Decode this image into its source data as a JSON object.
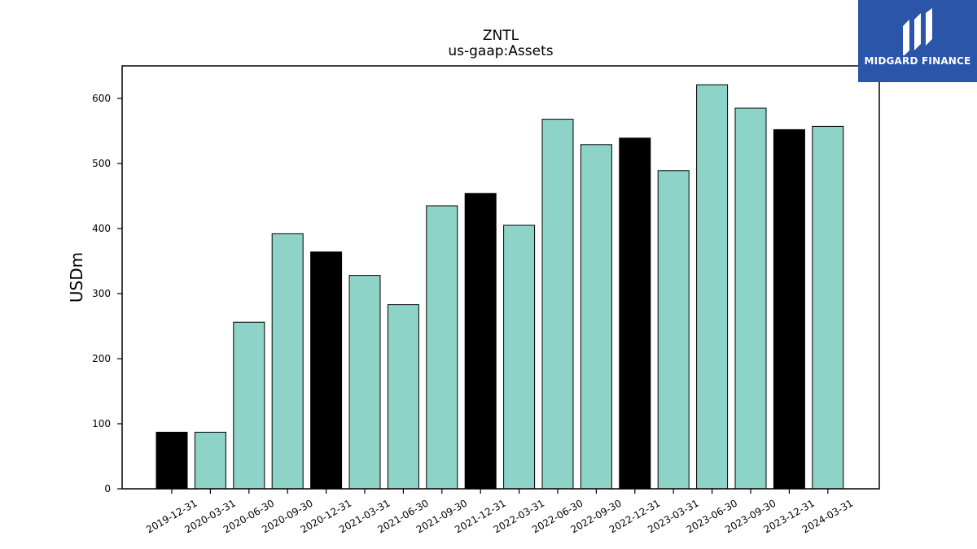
{
  "logo": {
    "text": "MIDGARD FINANCE",
    "color": "#2a55a8"
  },
  "chart_data": {
    "type": "bar",
    "title": "ZNTL",
    "subtitle": "us-gaap:Assets",
    "xlabel": "",
    "ylabel": "USDm",
    "ylim": [
      0,
      650
    ],
    "yticks": [
      0,
      100,
      200,
      300,
      400,
      500,
      600
    ],
    "categories": [
      "2019-12-31",
      "2020-03-31",
      "2020-06-30",
      "2020-09-30",
      "2020-12-31",
      "2021-03-31",
      "2021-06-30",
      "2021-09-30",
      "2021-12-31",
      "2022-03-31",
      "2022-06-30",
      "2022-09-30",
      "2022-12-31",
      "2023-03-31",
      "2023-06-30",
      "2023-09-30",
      "2023-12-31",
      "2024-03-31"
    ],
    "values": [
      87,
      87,
      256,
      392,
      364,
      328,
      283,
      435,
      454,
      405,
      568,
      529,
      539,
      489,
      621,
      585,
      552,
      557
    ],
    "bar_colors": [
      "#000000",
      "#8dd3c7",
      "#8dd3c7",
      "#8dd3c7",
      "#000000",
      "#8dd3c7",
      "#8dd3c7",
      "#8dd3c7",
      "#000000",
      "#8dd3c7",
      "#8dd3c7",
      "#8dd3c7",
      "#000000",
      "#8dd3c7",
      "#8dd3c7",
      "#8dd3c7",
      "#000000",
      "#8dd3c7"
    ],
    "grid": false,
    "legend": "none"
  }
}
